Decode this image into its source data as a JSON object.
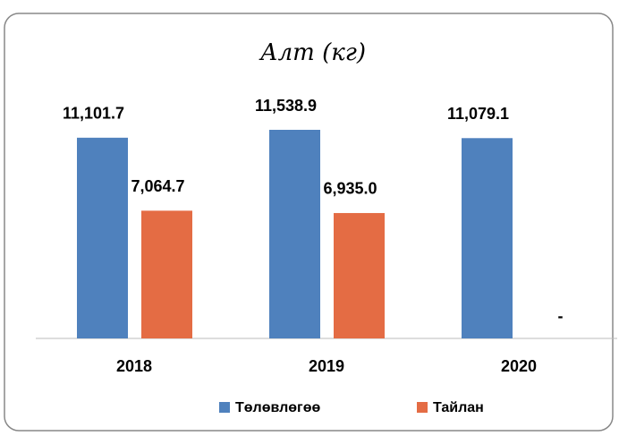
{
  "chart_data": {
    "type": "bar",
    "title": "Алт (кг)",
    "categories": [
      "2018",
      "2019",
      "2020"
    ],
    "series": [
      {
        "name": "Төлөвлөгөө",
        "color": "#4f81bd",
        "values": [
          11101.7,
          11538.9,
          11079.1
        ],
        "value_labels": [
          "11,101.7",
          "11,538.9",
          "11,079.1"
        ]
      },
      {
        "name": "Тайлан",
        "color": "#e46c44",
        "values": [
          7064.7,
          6935.0,
          null
        ],
        "value_labels": [
          "7,064.7",
          "6,935.0",
          "-"
        ]
      }
    ]
  }
}
